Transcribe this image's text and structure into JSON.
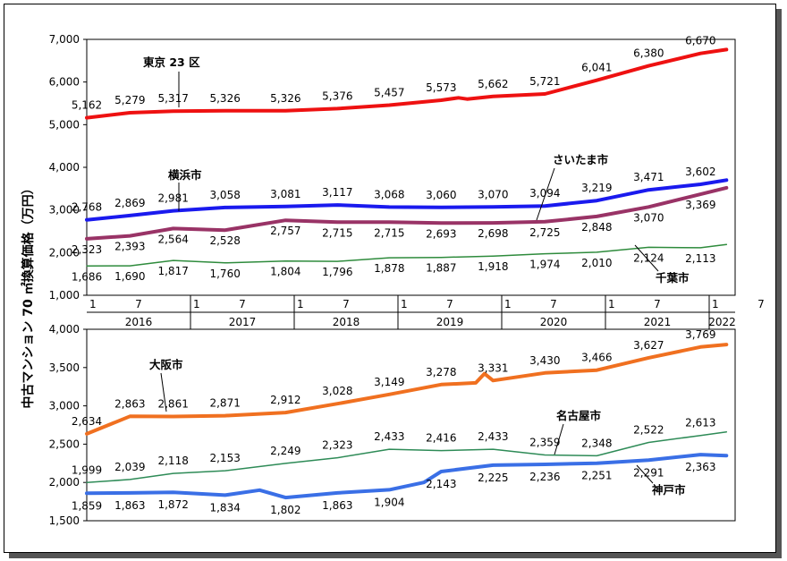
{
  "y_axis_title": "中古マンション 70 ㎡換算価格（万円）",
  "x_axis": {
    "month_labels": [
      "1",
      "7"
    ],
    "years": [
      "2016",
      "2017",
      "2018",
      "2019",
      "2020",
      "2021",
      "2022"
    ]
  },
  "chart_data": [
    {
      "type": "line",
      "ylim": [
        1000,
        7000
      ],
      "yticks": [
        "1,000",
        "2,000",
        "3,000",
        "4,000",
        "5,000",
        "6,000",
        "7,000"
      ],
      "x_start": "2016-01",
      "x_end": "2022-04",
      "series": [
        {
          "name": "東京 23 区",
          "color": "#ee1111",
          "label_pos": [
            0,
            0
          ],
          "points": [
            [
              "2016-01",
              5162
            ],
            [
              "2016-06",
              5279
            ],
            [
              "2016-11",
              5317
            ],
            [
              "2017-05",
              5326
            ],
            [
              "2017-12",
              5326
            ],
            [
              "2018-06",
              5376
            ],
            [
              "2018-12",
              5457
            ],
            [
              "2019-06",
              5573
            ],
            [
              "2019-08",
              5630
            ],
            [
              "2019-09",
              5600
            ],
            [
              "2019-12",
              5662
            ],
            [
              "2020-06",
              5721
            ],
            [
              "2020-12",
              6041
            ],
            [
              "2021-06",
              6380
            ],
            [
              "2021-12",
              6670
            ],
            [
              "2022-03",
              6760
            ]
          ],
          "labels": [
            {
              "date": "2016-01",
              "text": "5,162"
            },
            {
              "date": "2016-06",
              "text": "5,279"
            },
            {
              "date": "2016-11",
              "text": "5,317"
            },
            {
              "date": "2017-05",
              "text": "5,326"
            },
            {
              "date": "2017-12",
              "text": "5,326"
            },
            {
              "date": "2018-06",
              "text": "5,376"
            },
            {
              "date": "2018-12",
              "text": "5,457"
            },
            {
              "date": "2019-06",
              "text": "5,573"
            },
            {
              "date": "2019-12",
              "text": "5,662"
            },
            {
              "date": "2020-06",
              "text": "5,721"
            },
            {
              "date": "2020-12",
              "text": "6,041"
            },
            {
              "date": "2021-06",
              "text": "6,380"
            },
            {
              "date": "2021-12",
              "text": "6,670"
            }
          ]
        },
        {
          "name": "横浜市",
          "color": "#1a1aee",
          "points": [
            [
              "2016-01",
              2768
            ],
            [
              "2016-06",
              2869
            ],
            [
              "2016-11",
              2981
            ],
            [
              "2017-05",
              3058
            ],
            [
              "2017-12",
              3081
            ],
            [
              "2018-06",
              3117
            ],
            [
              "2018-12",
              3068
            ],
            [
              "2019-06",
              3060
            ],
            [
              "2019-12",
              3070
            ],
            [
              "2020-06",
              3094
            ],
            [
              "2020-12",
              3219
            ],
            [
              "2021-06",
              3471
            ],
            [
              "2021-12",
              3602
            ],
            [
              "2022-03",
              3700
            ]
          ],
          "labels": [
            {
              "date": "2016-01",
              "text": "2,768"
            },
            {
              "date": "2016-06",
              "text": "2,869"
            },
            {
              "date": "2016-11",
              "text": "2,981"
            },
            {
              "date": "2017-05",
              "text": "3,058"
            },
            {
              "date": "2017-12",
              "text": "3,081"
            },
            {
              "date": "2018-06",
              "text": "3,117"
            },
            {
              "date": "2018-12",
              "text": "3,068"
            },
            {
              "date": "2019-06",
              "text": "3,060"
            },
            {
              "date": "2019-12",
              "text": "3,070"
            },
            {
              "date": "2020-06",
              "text": "3,094"
            },
            {
              "date": "2020-12",
              "text": "3,219"
            },
            {
              "date": "2021-06",
              "text": "3,471"
            },
            {
              "date": "2021-12",
              "text": "3,602"
            }
          ]
        },
        {
          "name": "さいたま市",
          "color": "#993366",
          "points": [
            [
              "2016-01",
              2323
            ],
            [
              "2016-06",
              2393
            ],
            [
              "2016-11",
              2564
            ],
            [
              "2017-05",
              2528
            ],
            [
              "2017-12",
              2757
            ],
            [
              "2018-06",
              2715
            ],
            [
              "2018-12",
              2715
            ],
            [
              "2019-06",
              2693
            ],
            [
              "2019-12",
              2698
            ],
            [
              "2020-06",
              2725
            ],
            [
              "2020-12",
              2848
            ],
            [
              "2021-06",
              3070
            ],
            [
              "2021-12",
              3369
            ],
            [
              "2022-03",
              3520
            ]
          ],
          "labels": [
            {
              "date": "2016-01",
              "text": "2,323"
            },
            {
              "date": "2016-06",
              "text": "2,393"
            },
            {
              "date": "2016-11",
              "text": "2,564"
            },
            {
              "date": "2017-05",
              "text": "2,528"
            },
            {
              "date": "2017-12",
              "text": "2,757"
            },
            {
              "date": "2018-06",
              "text": "2,715"
            },
            {
              "date": "2018-12",
              "text": "2,715"
            },
            {
              "date": "2019-06",
              "text": "2,693"
            },
            {
              "date": "2019-12",
              "text": "2,698"
            },
            {
              "date": "2020-06",
              "text": "2,725"
            },
            {
              "date": "2020-12",
              "text": "2,848"
            },
            {
              "date": "2021-06",
              "text": "3,070"
            },
            {
              "date": "2021-12",
              "text": "3,369"
            }
          ]
        },
        {
          "name": "千葉市",
          "color": "#2e8b3c",
          "points": [
            [
              "2016-01",
              1686
            ],
            [
              "2016-06",
              1690
            ],
            [
              "2016-11",
              1817
            ],
            [
              "2017-05",
              1760
            ],
            [
              "2017-12",
              1804
            ],
            [
              "2018-06",
              1796
            ],
            [
              "2018-12",
              1878
            ],
            [
              "2019-06",
              1887
            ],
            [
              "2019-12",
              1918
            ],
            [
              "2020-06",
              1974
            ],
            [
              "2020-12",
              2010
            ],
            [
              "2021-06",
              2124
            ],
            [
              "2021-12",
              2113
            ],
            [
              "2022-03",
              2190
            ]
          ],
          "labels": [
            {
              "date": "2016-01",
              "text": "1,686"
            },
            {
              "date": "2016-06",
              "text": "1,690"
            },
            {
              "date": "2016-11",
              "text": "1,817"
            },
            {
              "date": "2017-05",
              "text": "1,760"
            },
            {
              "date": "2017-12",
              "text": "1,804"
            },
            {
              "date": "2018-06",
              "text": "1,796"
            },
            {
              "date": "2018-12",
              "text": "1,878"
            },
            {
              "date": "2019-06",
              "text": "1,887"
            },
            {
              "date": "2019-12",
              "text": "1,918"
            },
            {
              "date": "2020-06",
              "text": "1,974"
            },
            {
              "date": "2020-12",
              "text": "2,010"
            },
            {
              "date": "2021-06",
              "text": "2,124"
            },
            {
              "date": "2021-12",
              "text": "2,113"
            }
          ]
        }
      ]
    },
    {
      "type": "line",
      "ylim": [
        1500,
        4000
      ],
      "yticks": [
        "1,500",
        "2,000",
        "2,500",
        "3,000",
        "3,500",
        "4,000"
      ],
      "x_start": "2016-01",
      "x_end": "2022-04",
      "series": [
        {
          "name": "大阪市",
          "color": "#f07020",
          "points": [
            [
              "2016-01",
              2634
            ],
            [
              "2016-06",
              2863
            ],
            [
              "2016-11",
              2861
            ],
            [
              "2017-05",
              2871
            ],
            [
              "2017-12",
              2912
            ],
            [
              "2018-06",
              3028
            ],
            [
              "2018-12",
              3149
            ],
            [
              "2019-06",
              3278
            ],
            [
              "2019-10",
              3300
            ],
            [
              "2019-11",
              3420
            ],
            [
              "2019-12",
              3331
            ],
            [
              "2020-06",
              3430
            ],
            [
              "2020-12",
              3466
            ],
            [
              "2021-06",
              3627
            ],
            [
              "2021-12",
              3769
            ],
            [
              "2022-03",
              3800
            ]
          ],
          "labels": [
            {
              "date": "2016-01",
              "text": "2,634"
            },
            {
              "date": "2016-06",
              "text": "2,863"
            },
            {
              "date": "2016-11",
              "text": "2,861"
            },
            {
              "date": "2017-05",
              "text": "2,871"
            },
            {
              "date": "2017-12",
              "text": "2,912"
            },
            {
              "date": "2018-06",
              "text": "3,028"
            },
            {
              "date": "2018-12",
              "text": "3,149"
            },
            {
              "date": "2019-06",
              "text": "3,278"
            },
            {
              "date": "2019-12",
              "text": "3,331"
            },
            {
              "date": "2020-06",
              "text": "3,430"
            },
            {
              "date": "2020-12",
              "text": "3,466"
            },
            {
              "date": "2021-06",
              "text": "3,627"
            },
            {
              "date": "2021-12",
              "text": "3,769"
            }
          ]
        },
        {
          "name": "名古屋市",
          "color": "#2e8b57",
          "points": [
            [
              "2016-01",
              1999
            ],
            [
              "2016-06",
              2039
            ],
            [
              "2016-11",
              2118
            ],
            [
              "2017-05",
              2153
            ],
            [
              "2017-12",
              2249
            ],
            [
              "2018-06",
              2323
            ],
            [
              "2018-12",
              2433
            ],
            [
              "2019-06",
              2416
            ],
            [
              "2019-12",
              2433
            ],
            [
              "2020-06",
              2359
            ],
            [
              "2020-12",
              2348
            ],
            [
              "2021-06",
              2522
            ],
            [
              "2021-12",
              2613
            ],
            [
              "2022-03",
              2660
            ]
          ],
          "labels": [
            {
              "date": "2016-01",
              "text": "1,999"
            },
            {
              "date": "2016-06",
              "text": "2,039"
            },
            {
              "date": "2016-11",
              "text": "2,118"
            },
            {
              "date": "2017-05",
              "text": "2,153"
            },
            {
              "date": "2017-12",
              "text": "2,249"
            },
            {
              "date": "2018-06",
              "text": "2,323"
            },
            {
              "date": "2018-12",
              "text": "2,433"
            },
            {
              "date": "2019-06",
              "text": "2,416"
            },
            {
              "date": "2019-12",
              "text": "2,433"
            },
            {
              "date": "2020-06",
              "text": "2,359"
            },
            {
              "date": "2020-12",
              "text": "2,348"
            },
            {
              "date": "2021-06",
              "text": "2,522"
            },
            {
              "date": "2021-12",
              "text": "2,613"
            }
          ]
        },
        {
          "name": "神戸市",
          "color": "#3a6fe6",
          "points": [
            [
              "2016-01",
              1859
            ],
            [
              "2016-06",
              1863
            ],
            [
              "2016-11",
              1872
            ],
            [
              "2017-05",
              1834
            ],
            [
              "2017-09",
              1900
            ],
            [
              "2017-12",
              1802
            ],
            [
              "2018-06",
              1863
            ],
            [
              "2018-12",
              1904
            ],
            [
              "2019-04",
              2000
            ],
            [
              "2019-06",
              2143
            ],
            [
              "2019-12",
              2225
            ],
            [
              "2020-06",
              2236
            ],
            [
              "2020-12",
              2251
            ],
            [
              "2021-06",
              2291
            ],
            [
              "2021-12",
              2363
            ],
            [
              "2022-03",
              2350
            ]
          ],
          "labels": [
            {
              "date": "2016-01",
              "text": "1,859"
            },
            {
              "date": "2016-06",
              "text": "1,863"
            },
            {
              "date": "2016-11",
              "text": "1,872"
            },
            {
              "date": "2017-05",
              "text": "1,834"
            },
            {
              "date": "2017-12",
              "text": "1,802"
            },
            {
              "date": "2018-06",
              "text": "1,863"
            },
            {
              "date": "2018-12",
              "text": "1,904"
            },
            {
              "date": "2019-06",
              "text": "2,143"
            },
            {
              "date": "2019-12",
              "text": "2,225"
            },
            {
              "date": "2020-06",
              "text": "2,236"
            },
            {
              "date": "2020-12",
              "text": "2,251"
            },
            {
              "date": "2021-06",
              "text": "2,291"
            },
            {
              "date": "2021-12",
              "text": "2,363"
            }
          ]
        }
      ]
    }
  ]
}
